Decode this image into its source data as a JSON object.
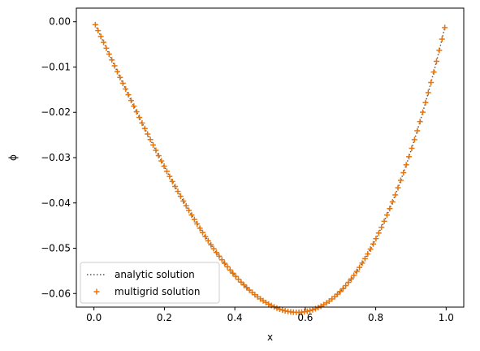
{
  "chart_data": {
    "type": "line",
    "title": "",
    "xlabel": "x",
    "ylabel": "ϕ",
    "xlim": [
      -0.05,
      1.05
    ],
    "ylim": [
      -0.063,
      0.003
    ],
    "x_ticks": [
      0.0,
      0.2,
      0.4,
      0.6,
      0.8,
      1.0
    ],
    "x_tick_labels": [
      "0.0",
      "0.2",
      "0.4",
      "0.6",
      "0.8",
      "1.0"
    ],
    "y_ticks": [
      0.0,
      -0.01,
      -0.02,
      -0.03,
      -0.04,
      -0.05,
      -0.06
    ],
    "y_tick_labels": [
      "0.00",
      "−0.01",
      "−0.02",
      "−0.03",
      "−0.04",
      "−0.05",
      "−0.06"
    ],
    "grid": false,
    "legend_position": "lower-left",
    "series": [
      {
        "name": "analytic solution",
        "style": "dotted-line",
        "color": "#555555",
        "formula": "phi = (x^3 - x)/6",
        "x_range": [
          0.0039,
          0.9961
        ],
        "points": 128
      },
      {
        "name": "multigrid solution",
        "style": "plus-markers",
        "color": "#e6750e",
        "formula": "phi = (x^3 - x)/6",
        "x_range": [
          0.0039,
          0.9961
        ],
        "points": 128
      }
    ]
  }
}
